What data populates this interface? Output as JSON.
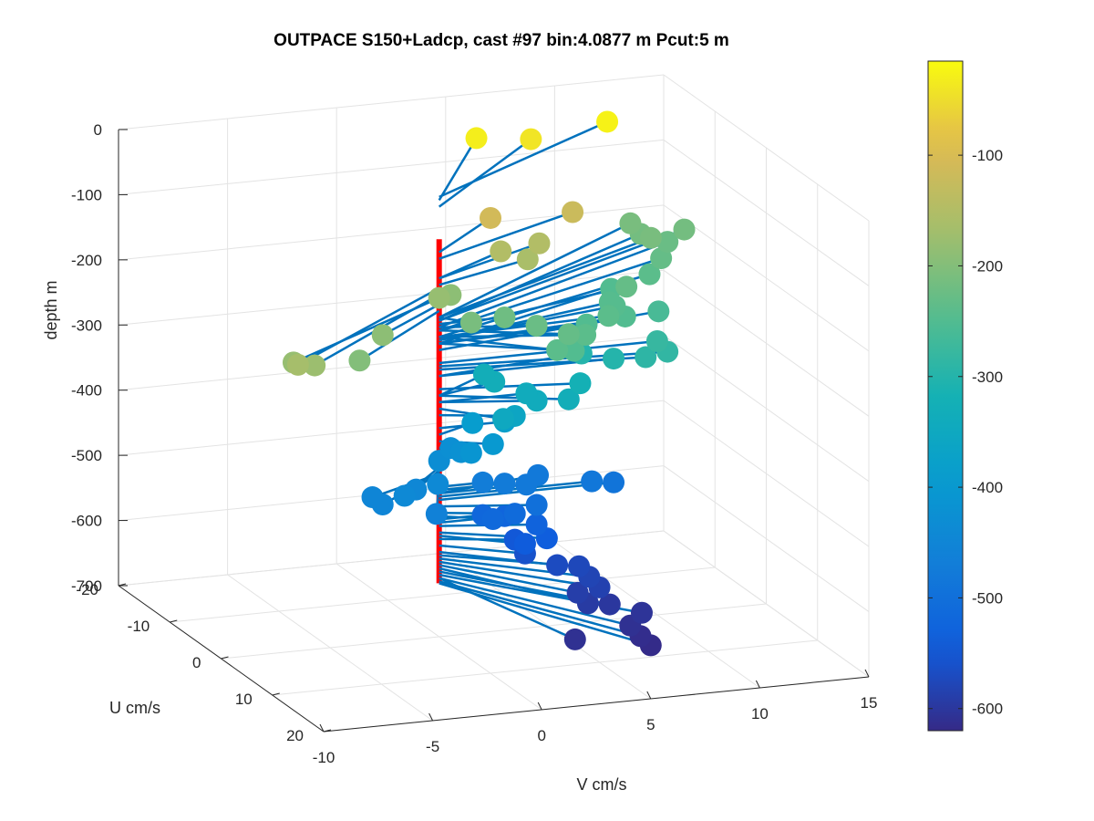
{
  "chart_data": {
    "type": "scatter",
    "title": "OUTPACE S150+Ladcp, cast #97 bin:4.0877 m  Pcut:5 m",
    "xlabel": "U cm/s",
    "ylabel": "V cm/s",
    "zlabel": "depth m",
    "xlim": [
      -20,
      20
    ],
    "ylim": [
      -10,
      15
    ],
    "zlim": [
      -700,
      0
    ],
    "x_ticks": [
      "-20",
      "-10",
      "0",
      "10",
      "20"
    ],
    "y_ticks": [
      "-10",
      "-5",
      "0",
      "5",
      "10",
      "15"
    ],
    "z_ticks": [
      "0",
      "-100",
      "-200",
      "-300",
      "-400",
      "-500",
      "-600",
      "-700"
    ],
    "colorbar": {
      "colormap": "parula",
      "range": [
        -620,
        -15
      ],
      "ticks": [
        "-100",
        "-200",
        "-300",
        "-400",
        "-500",
        "-600"
      ]
    },
    "grid": true,
    "reference_line_color": "#ff0000",
    "vector_color": "#0072bd",
    "points": [
      {
        "u": 15,
        "v": -10,
        "depth": -165
      },
      {
        "u": 14,
        "v": -9,
        "depth": -175
      },
      {
        "u": 12,
        "v": -9.5,
        "depth": -180
      },
      {
        "u": 10,
        "v": -6,
        "depth": -200
      },
      {
        "u": 6,
        "v": -4,
        "depth": -190
      },
      {
        "u": 0,
        "v": 0,
        "depth": -180
      },
      {
        "u": -2,
        "v": 1,
        "depth": -190
      },
      {
        "u": -14,
        "v": 5,
        "depth": -30
      },
      {
        "u": -14,
        "v": 7.5,
        "depth": -40
      },
      {
        "u": -14,
        "v": 11,
        "depth": -25
      },
      {
        "u": -7,
        "v": 4,
        "depth": -110
      },
      {
        "u": -6,
        "v": 6,
        "depth": -150
      },
      {
        "u": -5,
        "v": 4,
        "depth": -150
      },
      {
        "u": -4,
        "v": 5,
        "depth": -160
      },
      {
        "u": -8,
        "v": 8,
        "depth": -120
      },
      {
        "u": 2,
        "v": 1,
        "depth": -210
      },
      {
        "u": 0,
        "v": 3,
        "depth": -220
      },
      {
        "u": 2,
        "v": 4,
        "depth": -225
      },
      {
        "u": 4,
        "v": 5,
        "depth": -230
      },
      {
        "u": 6,
        "v": 4,
        "depth": -240
      },
      {
        "u": 5,
        "v": 5,
        "depth": -250
      },
      {
        "u": 3,
        "v": 6,
        "depth": -240
      },
      {
        "u": -1,
        "v": 7,
        "depth": -250
      },
      {
        "u": -1,
        "v": 8,
        "depth": -240
      },
      {
        "u": -2,
        "v": 9,
        "depth": -250
      },
      {
        "u": -4,
        "v": 9,
        "depth": -245
      },
      {
        "u": -6,
        "v": 10,
        "depth": -230
      },
      {
        "u": -5,
        "v": 9,
        "depth": -245
      },
      {
        "u": -9,
        "v": 10,
        "depth": -250
      },
      {
        "u": -14,
        "v": 13,
        "depth": -210
      },
      {
        "u": -16,
        "v": 13,
        "depth": -215
      },
      {
        "u": -18,
        "v": 13,
        "depth": -210
      },
      {
        "u": -16,
        "v": 15,
        "depth": -215
      },
      {
        "u": -15,
        "v": 14,
        "depth": -225
      },
      {
        "u": -12,
        "v": 13,
        "depth": -230
      },
      {
        "u": -10,
        "v": 12,
        "depth": -240
      },
      {
        "u": -4,
        "v": 11,
        "depth": -260
      },
      {
        "u": 0,
        "v": 10,
        "depth": -280
      },
      {
        "u": 2,
        "v": 10,
        "depth": -285
      },
      {
        "u": 2,
        "v": 9,
        "depth": -290
      },
      {
        "u": 0,
        "v": 8,
        "depth": -300
      },
      {
        "u": -2,
        "v": 7,
        "depth": -300
      },
      {
        "u": 2,
        "v": 6,
        "depth": -320
      },
      {
        "u": 4,
        "v": 5,
        "depth": -330
      },
      {
        "u": 2,
        "v": 4,
        "depth": -340
      },
      {
        "u": 0,
        "v": 4,
        "depth": -340
      },
      {
        "u": -2,
        "v": 3,
        "depth": -330
      },
      {
        "u": -4,
        "v": 3,
        "depth": -330
      },
      {
        "u": 4,
        "v": 2,
        "depth": -350
      },
      {
        "u": 2,
        "v": 3,
        "depth": -360
      },
      {
        "u": 0,
        "v": 3,
        "depth": -380
      },
      {
        "u": -2,
        "v": 2,
        "depth": -390
      },
      {
        "u": 2,
        "v": 2,
        "depth": -400
      },
      {
        "u": 2,
        "v": 1,
        "depth": -410
      },
      {
        "u": 0,
        "v": 1,
        "depth": -420
      },
      {
        "u": -2,
        "v": 1,
        "depth": -425
      },
      {
        "u": 0,
        "v": 0,
        "depth": -430
      },
      {
        "u": 4,
        "v": -1,
        "depth": -440
      },
      {
        "u": 4,
        "v": -2,
        "depth": -445
      },
      {
        "u": 6,
        "v": -3,
        "depth": -440
      },
      {
        "u": 6,
        "v": -4,
        "depth": -450
      },
      {
        "u": 4,
        "v": -4,
        "depth": -450
      },
      {
        "u": 8,
        "v": -2,
        "depth": -460
      },
      {
        "u": 0,
        "v": 2,
        "depth": -470
      },
      {
        "u": 0,
        "v": 3,
        "depth": -475
      },
      {
        "u": 0,
        "v": 4,
        "depth": -480
      },
      {
        "u": -2,
        "v": 5,
        "depth": -480
      },
      {
        "u": 0,
        "v": 7,
        "depth": -485
      },
      {
        "u": 0,
        "v": 8,
        "depth": -490
      },
      {
        "u": 2,
        "v": 4,
        "depth": -500
      },
      {
        "u": 2,
        "v": 3,
        "depth": -510
      },
      {
        "u": 2,
        "v": 2,
        "depth": -515
      },
      {
        "u": 0,
        "v": 2,
        "depth": -520
      },
      {
        "u": 0,
        "v": 3,
        "depth": -525
      },
      {
        "u": 2,
        "v": 4,
        "depth": -530
      },
      {
        "u": 4,
        "v": 4,
        "depth": -540
      },
      {
        "u": 4,
        "v": 3,
        "depth": -545
      },
      {
        "u": 2,
        "v": 3,
        "depth": -550
      },
      {
        "u": 4,
        "v": 3,
        "depth": -560
      },
      {
        "u": 6,
        "v": 4,
        "depth": -570
      },
      {
        "u": 6,
        "v": 5,
        "depth": -575
      },
      {
        "u": 8,
        "v": 5,
        "depth": -580
      },
      {
        "u": 10,
        "v": 5,
        "depth": -585
      },
      {
        "u": 10,
        "v": 4,
        "depth": -590
      },
      {
        "u": 12,
        "v": 4,
        "depth": -595
      },
      {
        "u": 12,
        "v": 5,
        "depth": -600
      },
      {
        "u": 14,
        "v": 6,
        "depth": -605
      },
      {
        "u": 16,
        "v": 5,
        "depth": -610
      },
      {
        "u": 18,
        "v": 5,
        "depth": -615
      },
      {
        "u": 18,
        "v": 2,
        "depth": -610
      },
      {
        "u": 20,
        "v": 5,
        "depth": -618
      }
    ]
  }
}
